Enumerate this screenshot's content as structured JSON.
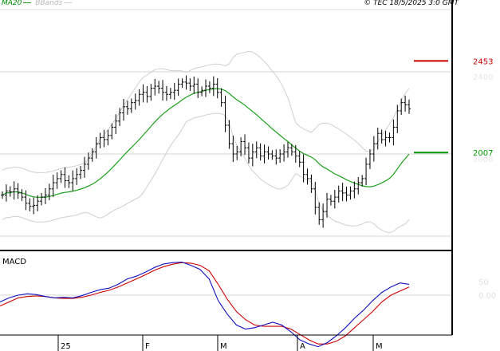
{
  "legend": {
    "ma_label": "MA20",
    "bb_label": "BBands"
  },
  "copyright": "© TEC 18/5/2025 3:0 GMT",
  "colors": {
    "ma": "#1aa01a",
    "bb": "#cfcfcf",
    "resistance": "#cc0000",
    "support": "#009900",
    "macd": "#1010c0",
    "signal": "#cc0000"
  },
  "chart_data": [
    {
      "type": "candlestick",
      "price_grid_labels": [
        "2400",
        "2000"
      ],
      "levels": [
        {
          "name": "resistance",
          "label": "2453",
          "value": 2453
        },
        {
          "name": "support",
          "label": "2007",
          "value": 2007
        }
      ],
      "x_labels": [
        "25",
        "F",
        "M",
        "A",
        "M"
      ],
      "closes": [
        1800,
        1820,
        1815,
        1830,
        1810,
        1790,
        1760,
        1745,
        1750,
        1770,
        1790,
        1800,
        1830,
        1860,
        1880,
        1900,
        1870,
        1860,
        1880,
        1900,
        1920,
        1950,
        1980,
        2010,
        2050,
        2080,
        2070,
        2090,
        2130,
        2160,
        2200,
        2230,
        2220,
        2250,
        2260,
        2290,
        2300,
        2280,
        2320,
        2330,
        2320,
        2300,
        2290,
        2300,
        2310,
        2340,
        2350,
        2345,
        2330,
        2340,
        2300,
        2310,
        2330,
        2320,
        2340,
        2300,
        2250,
        2140,
        2050,
        2000,
        2010,
        2060,
        2030,
        1980,
        2010,
        2030,
        1990,
        2010,
        2000,
        1990,
        1980,
        2000,
        2010,
        2030,
        2010,
        1990,
        1960,
        1900,
        1880,
        1830,
        1740,
        1680,
        1720,
        1780,
        1770,
        1790,
        1820,
        1810,
        1800,
        1820,
        1830,
        1860,
        1880,
        1950,
        2000,
        2050,
        2100,
        2070,
        2080,
        2080,
        2130,
        2210,
        2250,
        2240,
        2220
      ]
    },
    {
      "type": "line",
      "title": "MACD",
      "y_labels": [
        "50",
        "0.00"
      ],
      "series": [
        {
          "key": "macd",
          "values": [
            -25,
            -10,
            0,
            5,
            2,
            -5,
            -10,
            -8,
            -10,
            -2,
            10,
            20,
            26,
            40,
            60,
            70,
            85,
            102,
            115,
            120,
            122,
            110,
            95,
            60,
            -20,
            -70,
            -110,
            -125,
            -120,
            -110,
            -100,
            -110,
            -135,
            -165,
            -180,
            -190,
            -175,
            -150,
            -120,
            -85,
            -55,
            -20,
            10,
            30,
            45,
            40
          ]
        },
        {
          "key": "signal",
          "values": [
            -40,
            -25,
            -10,
            -5,
            -3,
            -5,
            -10,
            -12,
            -12,
            -8,
            0,
            10,
            18,
            30,
            45,
            60,
            75,
            92,
            105,
            114,
            120,
            118,
            110,
            90,
            40,
            -15,
            -60,
            -90,
            -110,
            -115,
            -115,
            -115,
            -125,
            -145,
            -165,
            -180,
            -180,
            -170,
            -150,
            -120,
            -90,
            -60,
            -25,
            0,
            15,
            30
          ]
        }
      ]
    }
  ]
}
